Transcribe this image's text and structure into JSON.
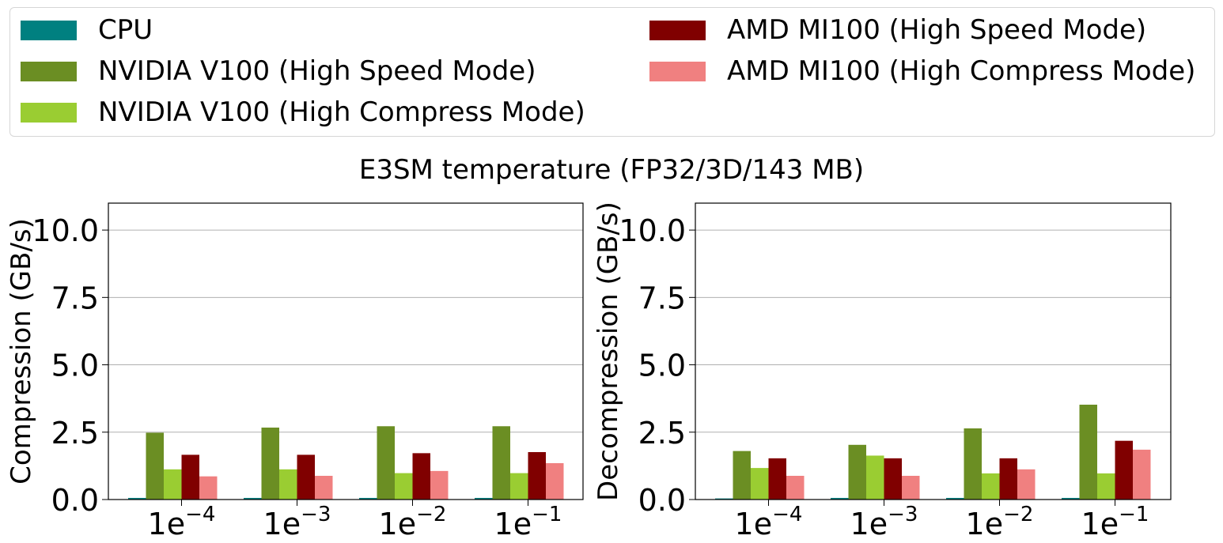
{
  "legend": {
    "items": [
      {
        "label": "CPU",
        "color": "#008080"
      },
      {
        "label": "NVIDIA V100 (High Speed Mode)",
        "color": "#6b8e23"
      },
      {
        "label": "NVIDIA V100 (High Compress Mode)",
        "color": "#9acd32"
      },
      {
        "label": "AMD MI100 (High Speed Mode)",
        "color": "#800000"
      },
      {
        "label": "AMD MI100 (High Compress Mode)",
        "color": "#f08080"
      }
    ]
  },
  "suptitle": "E3SM temperature (FP32/3D/143 MB)",
  "chart_data": [
    {
      "type": "bar",
      "ylabel": "Compression (GB/s)",
      "ylim": [
        0,
        11
      ],
      "yticks": [
        "0.0",
        "2.5",
        "5.0",
        "7.5",
        "10.0"
      ],
      "categories": [
        {
          "base": "1e",
          "exp": "−4"
        },
        {
          "base": "1e",
          "exp": "−3"
        },
        {
          "base": "1e",
          "exp": "−2"
        },
        {
          "base": "1e",
          "exp": "−1"
        }
      ],
      "grid": "y",
      "series": [
        {
          "name": "CPU",
          "color": "#008080",
          "values": [
            0.06,
            0.06,
            0.06,
            0.06
          ]
        },
        {
          "name": "NVIDIA V100 (High Speed Mode)",
          "color": "#6b8e23",
          "values": [
            2.48,
            2.67,
            2.72,
            2.72
          ]
        },
        {
          "name": "NVIDIA V100 (High Compress Mode)",
          "color": "#9acd32",
          "values": [
            1.12,
            1.12,
            0.98,
            0.98
          ]
        },
        {
          "name": "AMD MI100 (High Speed Mode)",
          "color": "#800000",
          "values": [
            1.66,
            1.66,
            1.72,
            1.76
          ]
        },
        {
          "name": "AMD MI100 (High Compress Mode)",
          "color": "#f08080",
          "values": [
            0.86,
            0.88,
            1.06,
            1.35
          ]
        }
      ]
    },
    {
      "type": "bar",
      "ylabel": "Decompression (GB/s)",
      "ylim": [
        0,
        11
      ],
      "yticks": [
        "0.0",
        "2.5",
        "5.0",
        "7.5",
        "10.0"
      ],
      "categories": [
        {
          "base": "1e",
          "exp": "−4"
        },
        {
          "base": "1e",
          "exp": "−3"
        },
        {
          "base": "1e",
          "exp": "−2"
        },
        {
          "base": "1e",
          "exp": "−1"
        }
      ],
      "grid": "y",
      "series": [
        {
          "name": "CPU",
          "color": "#008080",
          "values": [
            0.04,
            0.06,
            0.06,
            0.06
          ]
        },
        {
          "name": "NVIDIA V100 (High Speed Mode)",
          "color": "#6b8e23",
          "values": [
            1.8,
            2.03,
            2.64,
            3.52
          ]
        },
        {
          "name": "NVIDIA V100 (High Compress Mode)",
          "color": "#9acd32",
          "values": [
            1.17,
            1.63,
            0.97,
            0.97
          ]
        },
        {
          "name": "AMD MI100 (High Speed Mode)",
          "color": "#800000",
          "values": [
            1.53,
            1.53,
            1.53,
            2.18
          ]
        },
        {
          "name": "AMD MI100 (High Compress Mode)",
          "color": "#f08080",
          "values": [
            0.88,
            0.88,
            1.12,
            1.85
          ]
        }
      ]
    }
  ]
}
